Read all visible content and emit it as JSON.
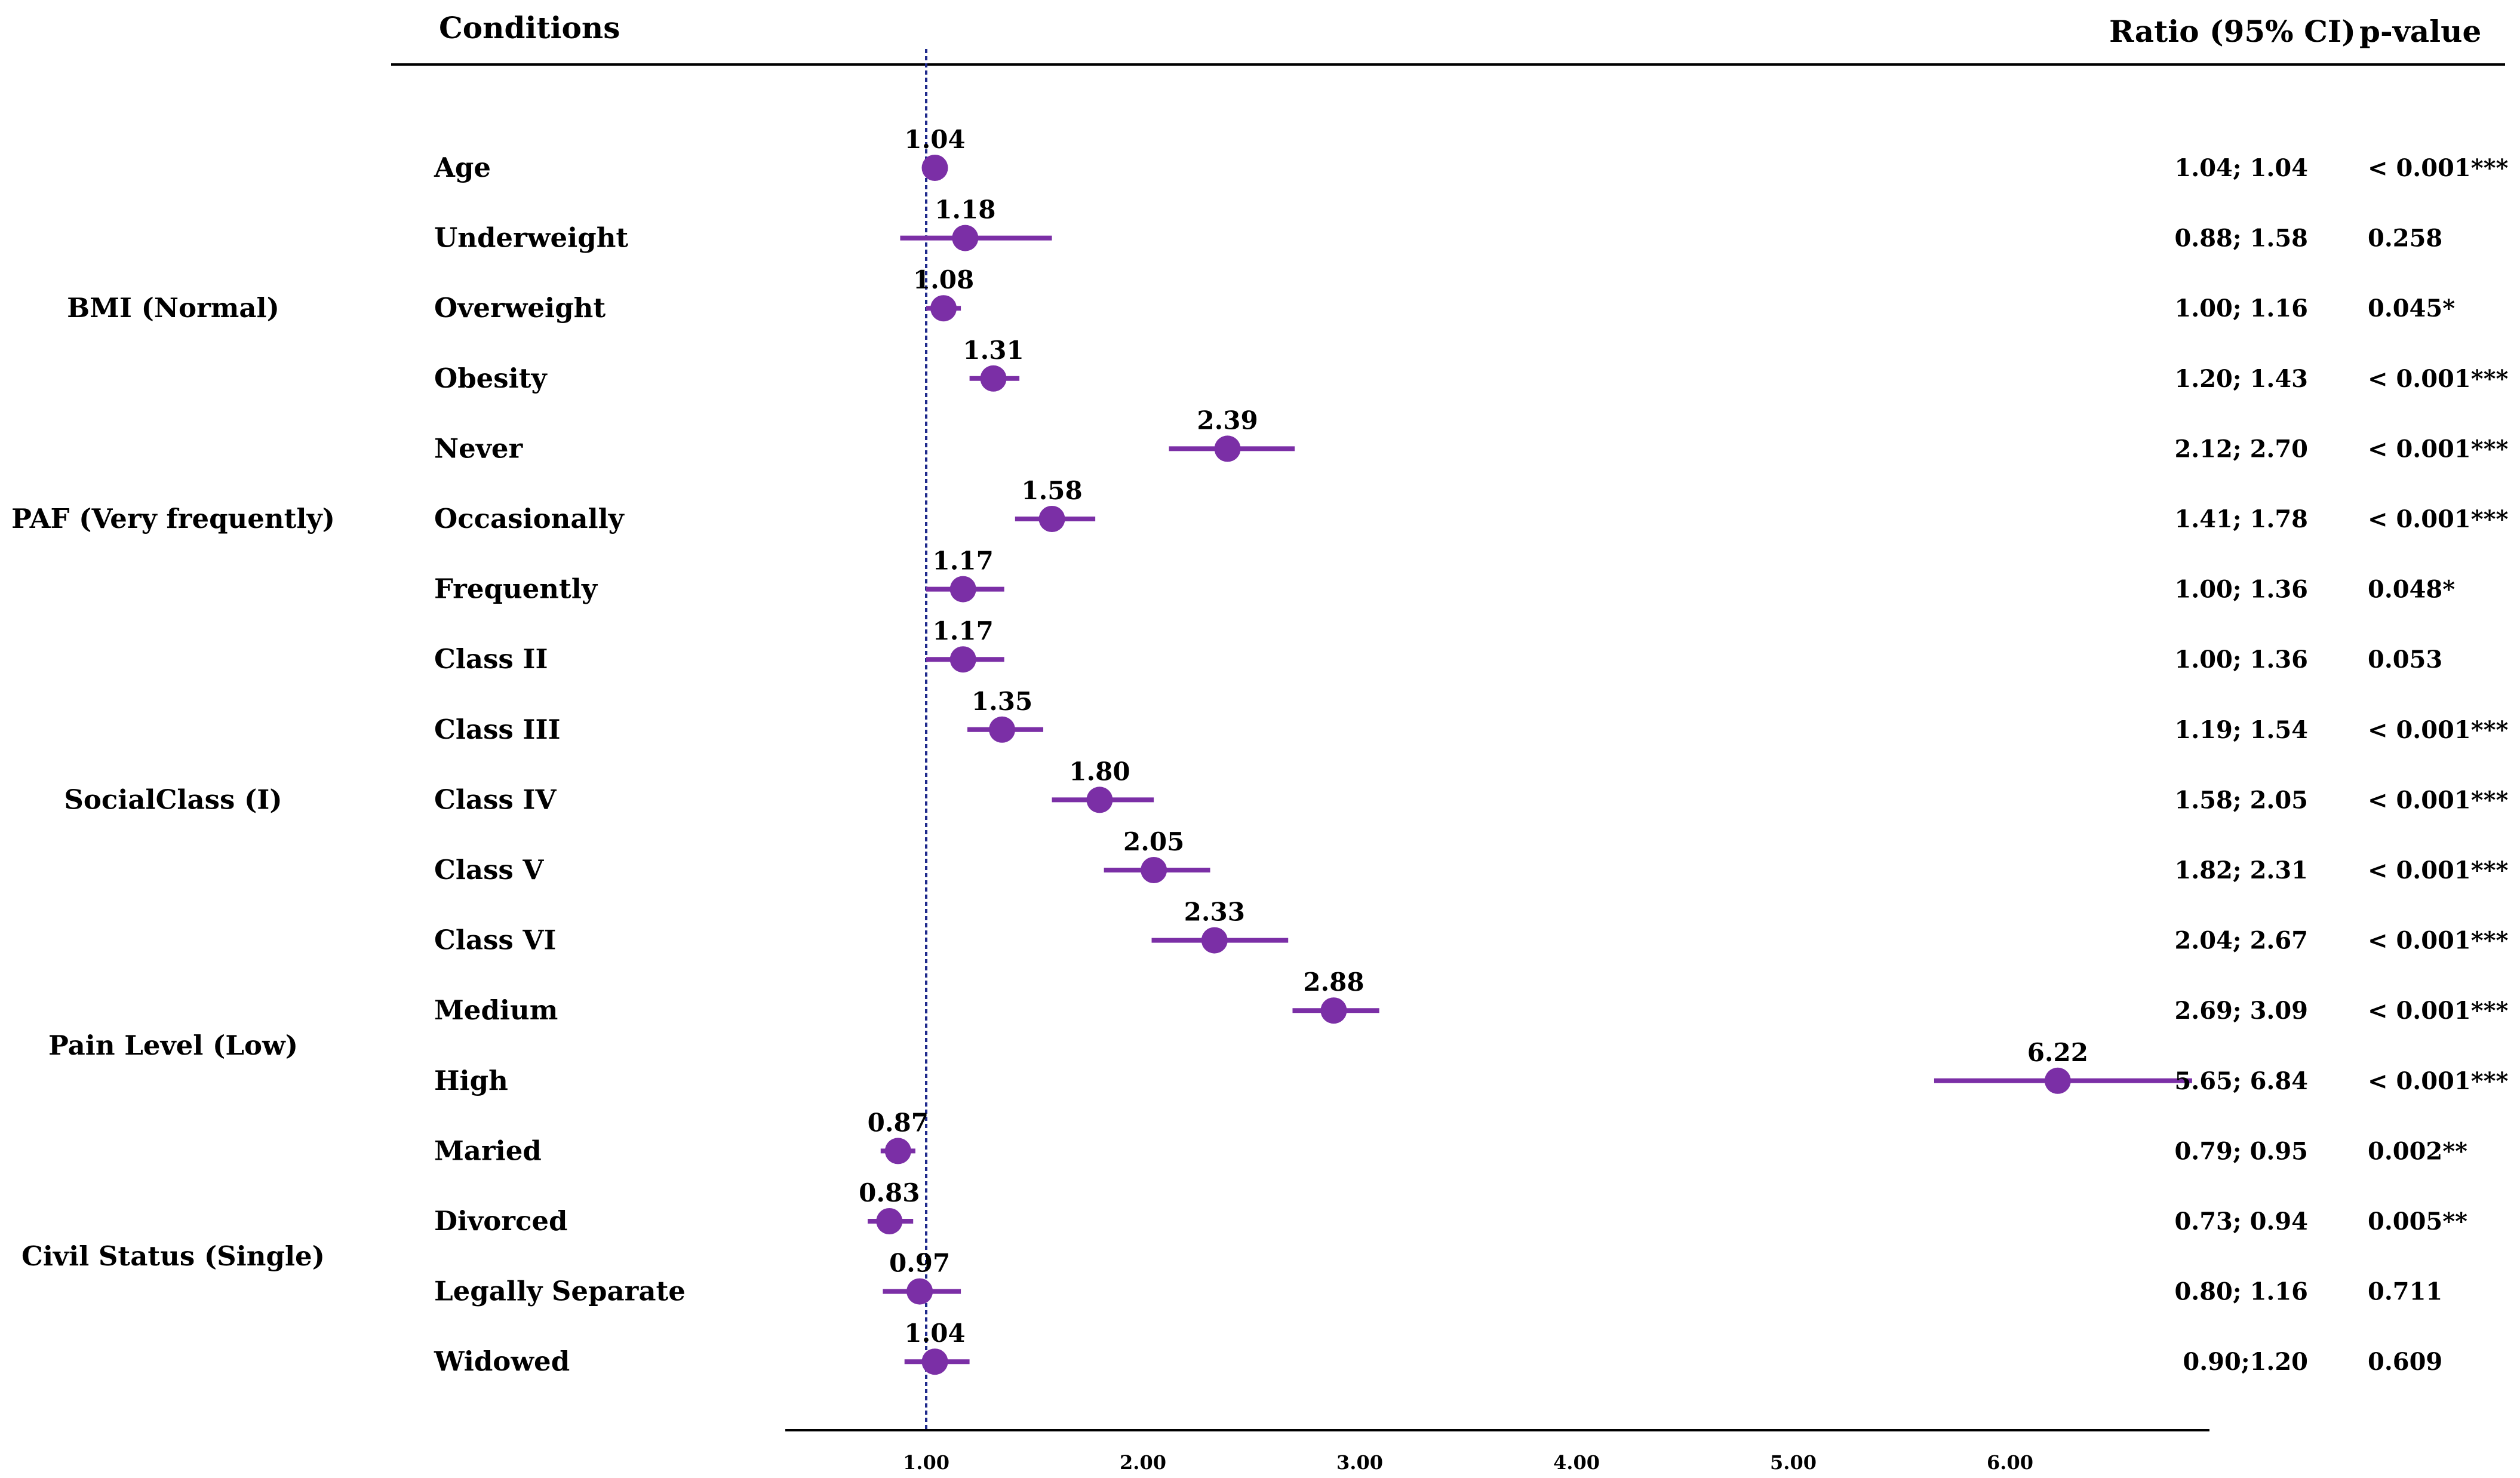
{
  "chart_data": {
    "type": "forest",
    "headers": {
      "conditions": "Conditions",
      "ratio": "Ratio (95% CI)",
      "pvalue": "p-value"
    },
    "groups": [
      {
        "name": "BMI (Normal)",
        "rows": [
          1,
          3
        ]
      },
      {
        "name": "PAF (Very frequently)",
        "rows": [
          4,
          6
        ]
      },
      {
        "name": "SocialClass (I)",
        "rows": [
          7,
          11
        ]
      },
      {
        "name": "Pain Level (Low)",
        "rows": [
          12,
          13
        ]
      },
      {
        "name": "Civil Status (Single)",
        "rows": [
          14,
          17
        ]
      }
    ],
    "rows": [
      {
        "label": "Age",
        "estimate": 1.04,
        "est_label": "1.04",
        "lo": 1.04,
        "hi": 1.04,
        "ci": "1.04; 1.04",
        "p": "< 0.001***"
      },
      {
        "label": "Underweight",
        "estimate": 1.18,
        "est_label": "1.18",
        "lo": 0.88,
        "hi": 1.58,
        "ci": "0.88; 1.58",
        "p": "0.258"
      },
      {
        "label": "Overweight",
        "estimate": 1.08,
        "est_label": "1.08",
        "lo": 1.0,
        "hi": 1.16,
        "ci": "1.00; 1.16",
        "p": "0.045*"
      },
      {
        "label": "Obesity",
        "estimate": 1.31,
        "est_label": "1.31",
        "lo": 1.2,
        "hi": 1.43,
        "ci": "1.20; 1.43",
        "p": "< 0.001***"
      },
      {
        "label": "Never",
        "estimate": 2.39,
        "est_label": "2.39",
        "lo": 2.12,
        "hi": 2.7,
        "ci": "2.12; 2.70",
        "p": "< 0.001***"
      },
      {
        "label": "Occasionally",
        "estimate": 1.58,
        "est_label": "1.58",
        "lo": 1.41,
        "hi": 1.78,
        "ci": "1.41; 1.78",
        "p": "< 0.001***"
      },
      {
        "label": "Frequently",
        "estimate": 1.17,
        "est_label": "1.17",
        "lo": 1.0,
        "hi": 1.36,
        "ci": "1.00; 1.36",
        "p": "0.048*"
      },
      {
        "label": "Class II",
        "estimate": 1.17,
        "est_label": "1.17",
        "lo": 1.0,
        "hi": 1.36,
        "ci": "1.00; 1.36",
        "p": "0.053"
      },
      {
        "label": "Class III",
        "estimate": 1.35,
        "est_label": "1.35",
        "lo": 1.19,
        "hi": 1.54,
        "ci": "1.19; 1.54",
        "p": "< 0.001***"
      },
      {
        "label": "Class IV",
        "estimate": 1.8,
        "est_label": "1.80",
        "lo": 1.58,
        "hi": 2.05,
        "ci": "1.58; 2.05",
        "p": "< 0.001***"
      },
      {
        "label": "Class V",
        "estimate": 2.05,
        "est_label": "2.05",
        "lo": 1.82,
        "hi": 2.31,
        "ci": "1.82; 2.31",
        "p": "< 0.001***"
      },
      {
        "label": "Class VI",
        "estimate": 2.33,
        "est_label": "2.33",
        "lo": 2.04,
        "hi": 2.67,
        "ci": "2.04; 2.67",
        "p": "< 0.001***"
      },
      {
        "label": "Medium",
        "estimate": 2.88,
        "est_label": "2.88",
        "lo": 2.69,
        "hi": 3.09,
        "ci": "2.69; 3.09",
        "p": "< 0.001***"
      },
      {
        "label": "High",
        "estimate": 6.22,
        "est_label": "6.22",
        "lo": 5.65,
        "hi": 6.84,
        "ci": "5.65; 6.84",
        "p": "< 0.001***"
      },
      {
        "label": "Maried",
        "estimate": 0.87,
        "est_label": "0.87",
        "lo": 0.79,
        "hi": 0.95,
        "ci": "0.79; 0.95",
        "p": "0.002**"
      },
      {
        "label": "Divorced",
        "estimate": 0.83,
        "est_label": "0.83",
        "lo": 0.73,
        "hi": 0.94,
        "ci": "0.73; 0.94",
        "p": "0.005**"
      },
      {
        "label": "Legally Separate",
        "estimate": 0.97,
        "est_label": "0.97",
        "lo": 0.8,
        "hi": 1.16,
        "ci": "0.80; 1.16",
        "p": "0.711"
      },
      {
        "label": "Widowed",
        "estimate": 1.04,
        "est_label": "1.04",
        "lo": 0.9,
        "hi": 1.2,
        "ci": "0.90;1.20",
        "p": "0.609"
      }
    ],
    "x_axis": {
      "ticks": [
        1,
        2,
        3,
        4,
        5,
        6
      ],
      "tick_labels": [
        "1.00",
        "2.00",
        "3.00",
        "4.00",
        "5.00",
        "6.00"
      ],
      "xlim": [
        0.35,
        6.92
      ],
      "reference": 1.0
    },
    "colors": {
      "marker": "#7B2FA6",
      "reference_line": "#1F2A8C",
      "axis": "#000000"
    }
  }
}
